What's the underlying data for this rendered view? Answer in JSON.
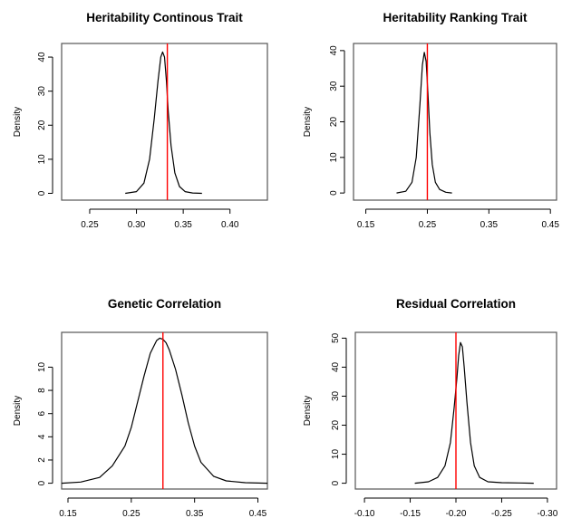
{
  "chart_data": [
    {
      "type": "line",
      "title": "Heritability Continous Trait",
      "xlabel": "",
      "ylabel": "Density",
      "xlim": [
        0.22,
        0.44
      ],
      "ylim": [
        -2,
        44
      ],
      "xticks": [
        "0.25",
        "0.30",
        "0.35",
        "0.40"
      ],
      "xtick_values": [
        0.25,
        0.3,
        0.35,
        0.4
      ],
      "yticks": [
        "0",
        "10",
        "20",
        "30",
        "40"
      ],
      "ytick_values": [
        0,
        10,
        20,
        30,
        40
      ],
      "reference_line": 0.333,
      "reference_color": "#ff0000",
      "series": [
        {
          "x": [
            0.288,
            0.3,
            0.308,
            0.314,
            0.319,
            0.323,
            0.326,
            0.328,
            0.33,
            0.332,
            0.334,
            0.337,
            0.341,
            0.346,
            0.352,
            0.36,
            0.37
          ],
          "y": [
            0,
            0.5,
            3,
            10,
            22,
            33,
            40,
            41.5,
            40,
            33,
            24,
            14,
            6,
            2,
            0.5,
            0.1,
            0
          ]
        }
      ]
    },
    {
      "type": "line",
      "title": "Heritability Ranking Trait",
      "xlabel": "",
      "ylabel": "Density",
      "xlim": [
        0.13,
        0.46
      ],
      "ylim": [
        -2,
        42
      ],
      "xticks": [
        "0.15",
        "0.25",
        "0.35",
        "0.45"
      ],
      "xtick_values": [
        0.15,
        0.25,
        0.35,
        0.45
      ],
      "yticks": [
        "0",
        "10",
        "20",
        "30",
        "40"
      ],
      "ytick_values": [
        0,
        10,
        20,
        30,
        40
      ],
      "reference_line": 0.25,
      "reference_color": "#ff0000",
      "series": [
        {
          "x": [
            0.2,
            0.215,
            0.225,
            0.232,
            0.238,
            0.242,
            0.245,
            0.248,
            0.251,
            0.254,
            0.258,
            0.263,
            0.27,
            0.28,
            0.29
          ],
          "y": [
            0,
            0.5,
            3,
            10,
            25,
            36,
            39.5,
            37,
            28,
            17,
            8,
            3,
            1,
            0.2,
            0
          ]
        }
      ]
    },
    {
      "type": "line",
      "title": "Genetic Correlation",
      "xlabel": "",
      "ylabel": "Density",
      "xlim": [
        0.14,
        0.465
      ],
      "ylim": [
        -0.5,
        13
      ],
      "xticks": [
        "0.15",
        "0.25",
        "0.35",
        "0.45"
      ],
      "xtick_values": [
        0.15,
        0.25,
        0.35,
        0.45
      ],
      "yticks": [
        "0",
        "2",
        "4",
        "6",
        "8",
        "10"
      ],
      "ytick_values": [
        0,
        2,
        4,
        6,
        8,
        10
      ],
      "reference_line": 0.3,
      "reference_color": "#ff0000",
      "series": [
        {
          "x": [
            0.14,
            0.17,
            0.2,
            0.22,
            0.24,
            0.25,
            0.26,
            0.27,
            0.28,
            0.29,
            0.295,
            0.3,
            0.305,
            0.31,
            0.32,
            0.33,
            0.34,
            0.35,
            0.36,
            0.38,
            0.4,
            0.43,
            0.465
          ],
          "y": [
            0,
            0.1,
            0.5,
            1.5,
            3.2,
            4.8,
            7.0,
            9.2,
            11.2,
            12.3,
            12.5,
            12.4,
            12.1,
            11.5,
            9.8,
            7.6,
            5.2,
            3.2,
            1.8,
            0.6,
            0.2,
            0.05,
            0
          ]
        }
      ]
    },
    {
      "type": "line",
      "title": "Residual Correlation",
      "xlabel": "",
      "ylabel": "Density",
      "xlim": [
        -0.09,
        -0.31
      ],
      "ylim": [
        -2,
        52
      ],
      "xticks": [
        "-0.10",
        "-0.15",
        "-0.20",
        "-0.25",
        "-0.30"
      ],
      "xtick_values": [
        -0.1,
        -0.15,
        -0.2,
        -0.25,
        -0.3
      ],
      "yticks": [
        "0",
        "10",
        "20",
        "30",
        "40",
        "50"
      ],
      "ytick_values": [
        0,
        10,
        20,
        30,
        40,
        50
      ],
      "reference_line": -0.2,
      "reference_color": "#ff0000",
      "series": [
        {
          "x": [
            -0.155,
            -0.17,
            -0.18,
            -0.188,
            -0.194,
            -0.198,
            -0.201,
            -0.203,
            -0.205,
            -0.207,
            -0.209,
            -0.212,
            -0.216,
            -0.22,
            -0.226,
            -0.235,
            -0.25,
            -0.27,
            -0.285
          ],
          "y": [
            0,
            0.5,
            2,
            6,
            14,
            26,
            36,
            44,
            48.5,
            47,
            40,
            28,
            14,
            6,
            2,
            0.5,
            0.2,
            0.1,
            0
          ]
        }
      ]
    }
  ]
}
